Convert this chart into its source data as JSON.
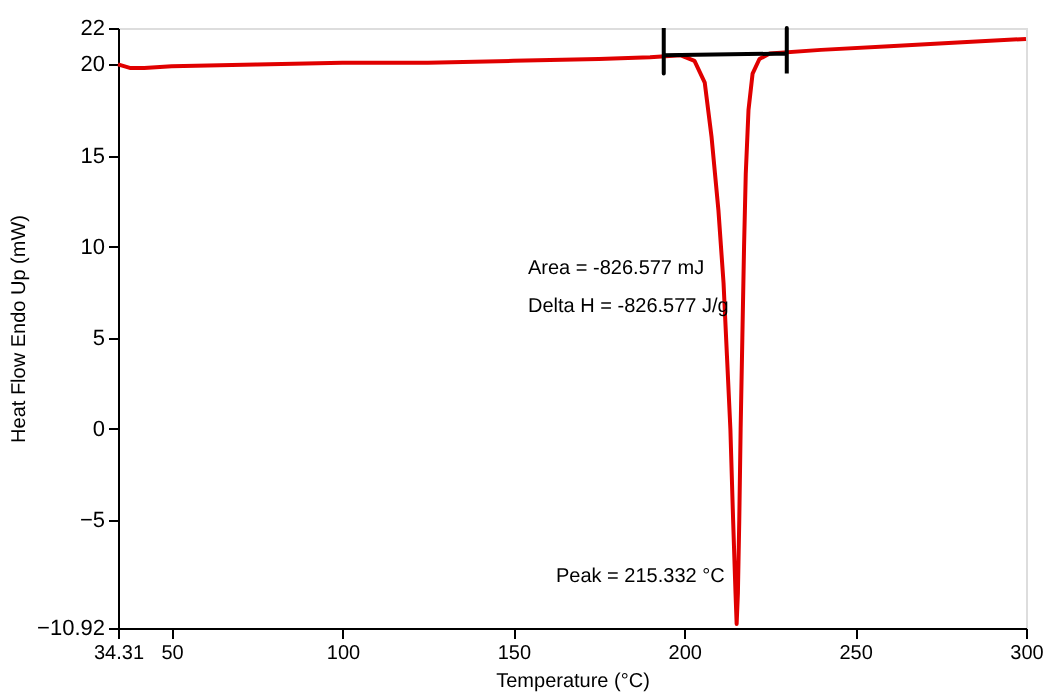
{
  "chart_data": {
    "type": "line",
    "xlabel": "Temperature (°C)",
    "ylabel": "Heat Flow Endo Up (mW)",
    "xlim": [
      34.31,
      300
    ],
    "xticks": [
      34.31,
      50,
      100,
      150,
      200,
      250,
      300
    ],
    "ylim": [
      -10.92,
      22
    ],
    "yticks": [
      -10.92,
      -5,
      0,
      5,
      10,
      15,
      20,
      22
    ],
    "grid": false,
    "legend": false,
    "marker": "none",
    "line_style": "solid",
    "series": [
      {
        "color": "#e00000",
        "x": [
          34.31,
          38,
          42,
          50,
          75,
          100,
          125,
          150,
          175,
          190,
          199,
          203,
          206,
          208,
          210,
          211.5,
          212.5,
          213.5,
          214.3,
          215,
          215.332,
          215.7,
          216.1,
          216.5,
          217,
          217.5,
          218,
          218.8,
          220,
          222,
          225,
          240,
          260,
          280,
          300
        ],
        "values": [
          20,
          19.8,
          19.8,
          19.9,
          20,
          20.1,
          20.1,
          20.2,
          20.3,
          20.4,
          20.5,
          20.2,
          19,
          16,
          12,
          8,
          4,
          0,
          -5,
          -9,
          -10.7,
          -9,
          -5,
          0,
          5,
          10,
          14,
          17.5,
          19.5,
          20.3,
          20.6,
          20.8,
          21,
          21.2,
          21.4
        ]
      },
      {
        "color": "#000000",
        "x": [
          194,
          194,
          194,
          230,
          230,
          230
        ],
        "values": [
          22,
          19.5,
          20.5,
          20.6,
          22,
          19.5
        ]
      }
    ],
    "annotations": [
      "Area = -826.577 mJ",
      "Delta H = -826.577 J/g",
      {
        "text": "Peak = 215.332 °C",
        "x": 215.332,
        "y": -10.7
      }
    ]
  }
}
